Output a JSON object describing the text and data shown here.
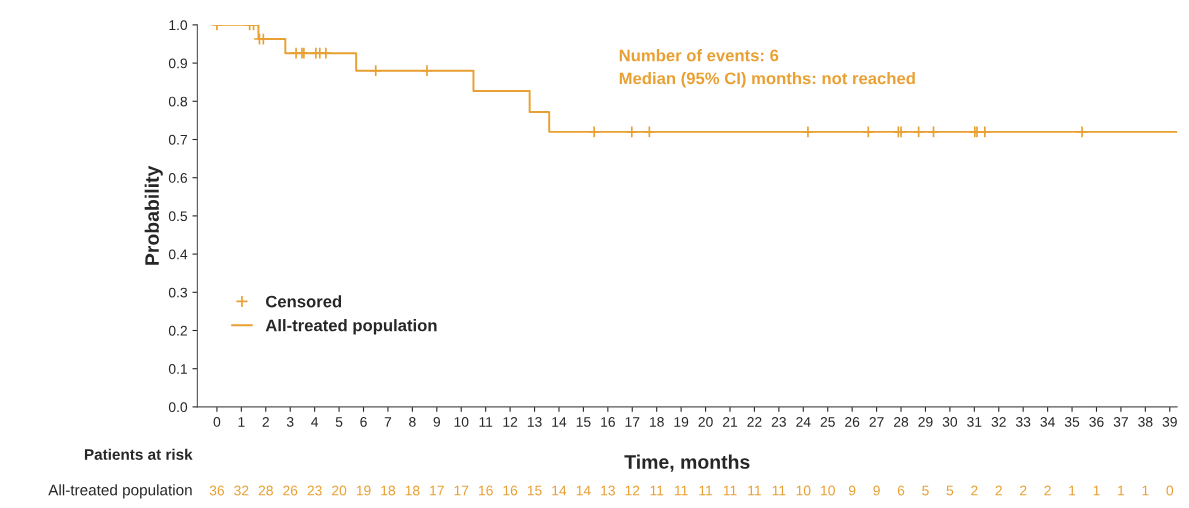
{
  "chart_data": {
    "type": "step",
    "xlabel": "Time, months",
    "ylabel": "Probability",
    "series": [
      {
        "name": "Censored",
        "type": "scatter",
        "color": "#e9a032",
        "marker": "cross",
        "x": [
          0,
          1.34,
          1.5,
          1.74,
          1.9,
          3.24,
          3.48,
          3.56,
          4.05,
          4.21,
          4.46,
          6.5,
          8.6,
          15.44,
          16.98,
          17.7,
          24.19,
          26.66,
          27.89,
          28.0,
          28.72,
          29.33,
          31.02,
          31.11,
          31.43,
          35.41
        ],
        "values": [
          1.0,
          1.0,
          1.0,
          0.963,
          0.963,
          0.926,
          0.926,
          0.926,
          0.926,
          0.926,
          0.926,
          0.88,
          0.88,
          0.72,
          0.72,
          0.72,
          0.72,
          0.72,
          0.72,
          0.72,
          0.72,
          0.72,
          0.72,
          0.72,
          0.72,
          0.72
        ]
      },
      {
        "name": "All-treated population",
        "color": "#e9a032",
        "marker": "none",
        "x": [
          0,
          1.7,
          2.8,
          5.7,
          10.5,
          12.8,
          13.6,
          39.3
        ],
        "values": [
          1.0,
          0.963,
          0.926,
          0.88,
          0.827,
          0.772,
          0.72,
          0.72
        ]
      }
    ],
    "xlim": [
      -0.8,
      39.3
    ],
    "xticks": [
      0,
      1,
      2,
      3,
      4,
      5,
      6,
      7,
      8,
      9,
      10,
      11,
      12,
      13,
      14,
      15,
      16,
      17,
      18,
      19,
      20,
      21,
      22,
      23,
      24,
      25,
      26,
      27,
      28,
      29,
      30,
      31,
      32,
      33,
      34,
      35,
      36,
      37,
      38,
      39
    ],
    "ylim": [
      0,
      1.0
    ],
    "yticks": [
      {
        "value": 0,
        "label": "0.0"
      },
      0.1,
      0.2,
      0.3,
      0.4,
      0.5,
      0.6,
      0.7,
      0.8,
      0.9,
      {
        "value": 1,
        "label": "1.0"
      }
    ],
    "grid": false,
    "legend": "bottom left",
    "annotations": [
      "Number of events: 6",
      "Median (95% CI) months: not reached",
      "Patients at risk",
      "All-treated population",
      "36",
      "32",
      "28",
      "26",
      "23",
      "20",
      "19",
      "18",
      "18",
      "17",
      "17",
      "16",
      "16",
      "15",
      "14",
      "14",
      "13",
      "12",
      "11",
      "11",
      "11",
      "11",
      "11",
      "11",
      "10",
      "10",
      "9",
      "9",
      "6",
      "5",
      "5",
      "2",
      "2",
      "2",
      "2",
      "1",
      "1",
      "1",
      "1",
      "0"
    ]
  }
}
